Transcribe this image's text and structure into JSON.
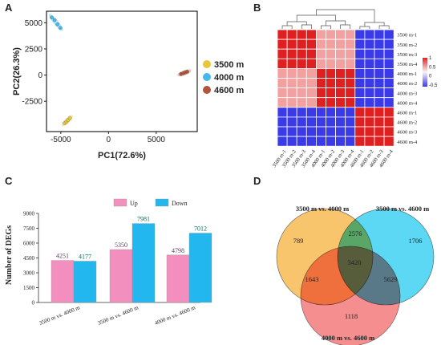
{
  "figure": {
    "panel_letters": [
      "A",
      "B",
      "C",
      "D"
    ]
  },
  "colors": {
    "g3500": "#e8c53a",
    "g4000": "#45b8ec",
    "g4600": "#b0553d",
    "up": "#f28fbe",
    "down": "#22b7ee",
    "hm_high": "#e02020",
    "hm_mid": "#f2a0a0",
    "hm_low": "#3a3ae8",
    "venn_a": "#f7b23b",
    "venn_b": "#25c9f0",
    "venn_c": "#f26a6a"
  },
  "chart_data": [
    {
      "panel": "A",
      "type": "scatter",
      "xlabel": "PC1(72.6%)",
      "ylabel": "PC2(26.3%)",
      "xticks": [
        "-5000",
        "0",
        "5000"
      ],
      "yticks": [
        "5000",
        "2500",
        "0",
        "-2500"
      ],
      "xlim": [
        -6500,
        9300
      ],
      "ylim": [
        -5400,
        6100
      ],
      "legend_position": "right",
      "series": [
        {
          "name": "3500 m",
          "color": "#e8c53a",
          "x": [
            -4600,
            -4400,
            -4250,
            -4050
          ],
          "y": [
            -4600,
            -4450,
            -4300,
            -4100
          ]
        },
        {
          "name": "4000 m",
          "color": "#45b8ec",
          "x": [
            -5950,
            -5650,
            -5350,
            -5050
          ],
          "y": [
            5500,
            5250,
            4850,
            4500
          ]
        },
        {
          "name": "4600 m",
          "color": "#b0553d",
          "x": [
            7600,
            7850,
            8050,
            8250
          ],
          "y": [
            100,
            180,
            260,
            320
          ]
        }
      ]
    },
    {
      "panel": "B",
      "type": "heatmap",
      "labels": [
        "3500 m-1",
        "3500 m-2",
        "3500 m-3",
        "3500 m-4",
        "4000 m-1",
        "4000 m-2",
        "4000 m-3",
        "4000 m-4",
        "4600 m-1",
        "4600 m-2",
        "4600 m-3",
        "4600 m-4"
      ],
      "colorbar_ticks": [
        "1",
        "0.5",
        "0",
        "-0.5"
      ],
      "blocks": [
        [
          "high",
          "mid",
          "low"
        ],
        [
          "mid",
          "high",
          "low"
        ],
        [
          "low",
          "low",
          "high"
        ]
      ]
    },
    {
      "panel": "C",
      "type": "bar",
      "ylabel": "Number of DEGs",
      "yticks": [
        "9000",
        "7500",
        "6000",
        "4500",
        "3000",
        "1500",
        "0"
      ],
      "ylim": [
        0,
        9000
      ],
      "categories": [
        "3500 m vs. 4000 m",
        "3500 m vs. 4600 m",
        "4000 m vs. 4600 m"
      ],
      "series": [
        {
          "name": "Up",
          "color": "#f28fbe",
          "values": [
            4251,
            5350,
            4798
          ],
          "labels": [
            "4251",
            "5350",
            "4798"
          ]
        },
        {
          "name": "Down",
          "color": "#22b7ee",
          "values": [
            4177,
            7981,
            7012
          ],
          "labels": [
            "4177",
            "7981",
            "7012"
          ]
        }
      ]
    },
    {
      "panel": "D",
      "type": "venn",
      "sets": [
        "3500 m vs. 4000 m",
        "3500 m vs. 4600 m",
        "4000 m vs. 4600 m"
      ],
      "regions": [
        {
          "key": "a_only",
          "label": "789"
        },
        {
          "key": "ab",
          "label": "2576"
        },
        {
          "key": "b_only",
          "label": "1706"
        },
        {
          "key": "abc",
          "label": "3420"
        },
        {
          "key": "ac",
          "label": "1643"
        },
        {
          "key": "bc",
          "label": "5629"
        },
        {
          "key": "c_only",
          "label": "1118"
        }
      ]
    }
  ]
}
